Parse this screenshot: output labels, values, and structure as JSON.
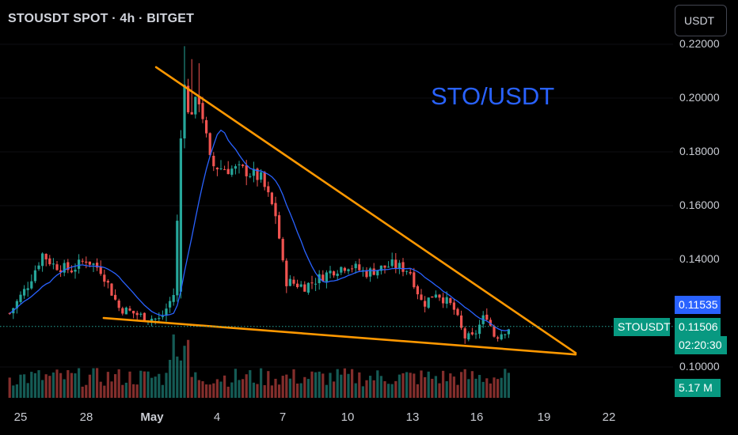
{
  "header": {
    "title": "STOUSDT SPOT · 4h · BITGET",
    "currency_button": "USDT"
  },
  "chart_data": {
    "type": "candlestick",
    "symbol": "STOUSDT",
    "annotation": "STO/USDT",
    "ylim": [
      0.09705,
      0.2225
    ],
    "y_ticks": [
      "0.22000",
      "0.20000",
      "0.18000",
      "0.16000",
      "0.14000",
      "0.10000"
    ],
    "y_tick_values": [
      0.22,
      0.2,
      0.18,
      0.16,
      0.14,
      0.1
    ],
    "x_ticks": [
      {
        "label": "25",
        "day": 25
      },
      {
        "label": "28",
        "day": 28
      },
      {
        "label": "May",
        "day": 31
      },
      {
        "label": "4",
        "day": 34
      },
      {
        "label": "7",
        "day": 37
      },
      {
        "label": "10",
        "day": 40
      },
      {
        "label": "13",
        "day": 43
      },
      {
        "label": "16",
        "day": 46
      },
      {
        "label": "19",
        "day": 49
      },
      {
        "label": "22",
        "day": 52
      }
    ],
    "x_range_days": [
      24.45,
      54.2
    ],
    "last_price": "0.11506",
    "last_price_value": 0.11506,
    "ma_value": "0.11535",
    "ma_value_num": 0.11535,
    "countdown": "02:20:30",
    "volume_label": "5.17 M",
    "colors": {
      "up": "#26a69a",
      "down": "#ef5350",
      "ma": "#2962ff",
      "trendline": "#ff9800",
      "background": "#000000"
    },
    "upper_trendline": [
      {
        "day": 31.2,
        "price": 0.2115
      },
      {
        "day": 50.4,
        "price": 0.1052
      }
    ],
    "lower_trendline": [
      {
        "day": 28.8,
        "price": 0.11822
      },
      {
        "day": 50.4,
        "price": 0.10466
      }
    ],
    "anchors": [
      {
        "day": 24.5,
        "price": 0.12
      },
      {
        "day": 25.3,
        "price": 0.13
      },
      {
        "day": 26.0,
        "price": 0.142
      },
      {
        "day": 26.5,
        "price": 0.138
      },
      {
        "day": 27.3,
        "price": 0.136
      },
      {
        "day": 28.0,
        "price": 0.14
      },
      {
        "day": 28.7,
        "price": 0.136
      },
      {
        "day": 29.5,
        "price": 0.122
      },
      {
        "day": 30.5,
        "price": 0.119
      },
      {
        "day": 31.4,
        "price": 0.1175
      },
      {
        "day": 32.0,
        "price": 0.127
      },
      {
        "day": 32.3,
        "price": 0.175
      },
      {
        "day": 32.6,
        "price": 0.193
      },
      {
        "day": 33.2,
        "price": 0.2
      },
      {
        "day": 33.7,
        "price": 0.175
      },
      {
        "day": 34.2,
        "price": 0.174
      },
      {
        "day": 35.3,
        "price": 0.173
      },
      {
        "day": 36.0,
        "price": 0.17
      },
      {
        "day": 36.7,
        "price": 0.156
      },
      {
        "day": 37.1,
        "price": 0.132
      },
      {
        "day": 38.0,
        "price": 0.13
      },
      {
        "day": 39.3,
        "price": 0.136
      },
      {
        "day": 40.0,
        "price": 0.138
      },
      {
        "day": 40.8,
        "price": 0.135
      },
      {
        "day": 42.0,
        "price": 0.138
      },
      {
        "day": 42.8,
        "price": 0.136
      },
      {
        "day": 43.4,
        "price": 0.123
      },
      {
        "day": 44.0,
        "price": 0.128
      },
      {
        "day": 44.8,
        "price": 0.122
      },
      {
        "day": 45.3,
        "price": 0.111
      },
      {
        "day": 45.7,
        "price": 0.111
      },
      {
        "day": 46.3,
        "price": 0.12
      },
      {
        "day": 46.7,
        "price": 0.111
      },
      {
        "day": 47.4,
        "price": 0.115
      }
    ]
  }
}
